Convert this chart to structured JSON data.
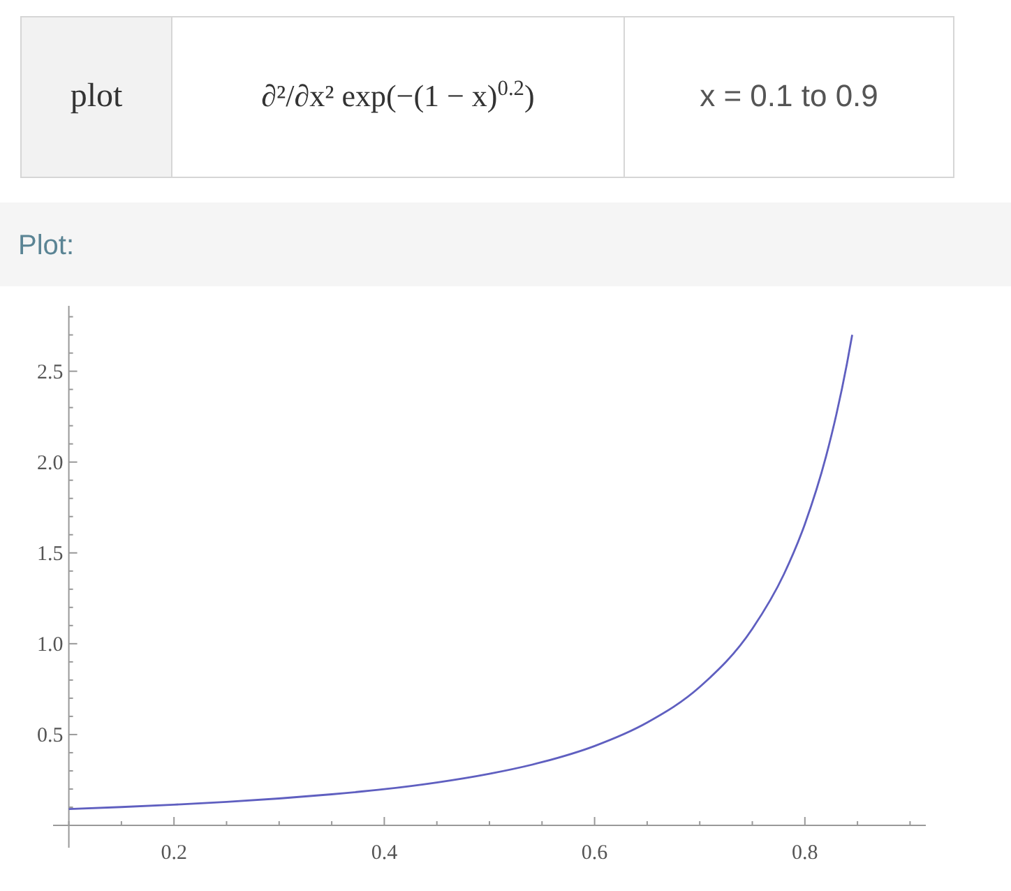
{
  "chart_data": {
    "type": "line",
    "title": "Plot:",
    "annotations": [
      "plot",
      "∂²/∂x² exp(−(1 − x)$^{0.2}$)",
      "x = 0.1 to 0.9"
    ],
    "x": [
      0.1,
      0.15,
      0.2,
      0.25,
      0.3,
      0.35,
      0.4,
      0.45,
      0.5,
      0.55,
      0.6,
      0.65,
      0.7,
      0.75,
      0.78,
      0.8,
      0.82,
      0.83,
      0.84,
      0.845
    ],
    "series": [
      {
        "color": "#5f5fc0",
        "values": [
          0.09,
          0.101,
          0.114,
          0.129,
          0.148,
          0.171,
          0.199,
          0.236,
          0.284,
          0.348,
          0.437,
          0.566,
          0.762,
          1.082,
          1.382,
          1.659,
          2.029,
          2.264,
          2.542,
          2.7
        ]
      }
    ],
    "xlim": [
      0.085,
      0.915
    ],
    "ylim": [
      0,
      2.86
    ],
    "xticks": [
      {
        "value": 0.1,
        "label": null
      },
      {
        "value": 0.15,
        "label": null
      },
      0.2,
      {
        "value": 0.25,
        "label": null
      },
      {
        "value": 0.3,
        "label": null
      },
      {
        "value": 0.35,
        "label": null
      },
      0.4,
      {
        "value": 0.45,
        "label": null
      },
      {
        "value": 0.5,
        "label": null
      },
      {
        "value": 0.55,
        "label": null
      },
      0.6,
      {
        "value": 0.65,
        "label": null
      },
      {
        "value": 0.7,
        "label": null
      },
      {
        "value": 0.75,
        "label": null
      },
      0.8,
      {
        "value": 0.85,
        "label": null
      },
      {
        "value": 0.9,
        "label": null
      }
    ],
    "yticks": [
      {
        "value": 0.1,
        "label": null
      },
      {
        "value": 0.2,
        "label": null
      },
      {
        "value": 0.3,
        "label": null
      },
      {
        "value": 0.4,
        "label": null
      },
      0.5,
      {
        "value": 0.6,
        "label": null
      },
      {
        "value": 0.7,
        "label": null
      },
      {
        "value": 0.8,
        "label": null
      },
      {
        "value": 0.9,
        "label": null
      },
      {
        "value": 1,
        "label": "1.0"
      },
      {
        "value": 1.1,
        "label": null
      },
      {
        "value": 1.2,
        "label": null
      },
      {
        "value": 1.3,
        "label": null
      },
      {
        "value": 1.4,
        "label": null
      },
      1.5,
      {
        "value": 1.6,
        "label": null
      },
      {
        "value": 1.7,
        "label": null
      },
      {
        "value": 1.8,
        "label": null
      },
      {
        "value": 1.9,
        "label": null
      },
      {
        "value": 2,
        "label": "2.0"
      },
      {
        "value": 2.1,
        "label": null
      },
      {
        "value": 2.2,
        "label": null
      },
      {
        "value": 2.3,
        "label": null
      },
      {
        "value": 2.4,
        "label": null
      },
      2.5,
      {
        "value": 2.6,
        "label": null
      },
      {
        "value": 2.7,
        "label": null
      },
      {
        "value": 2.8,
        "label": null
      }
    ],
    "grid": false,
    "marker": "none",
    "line_style": "solid"
  }
}
